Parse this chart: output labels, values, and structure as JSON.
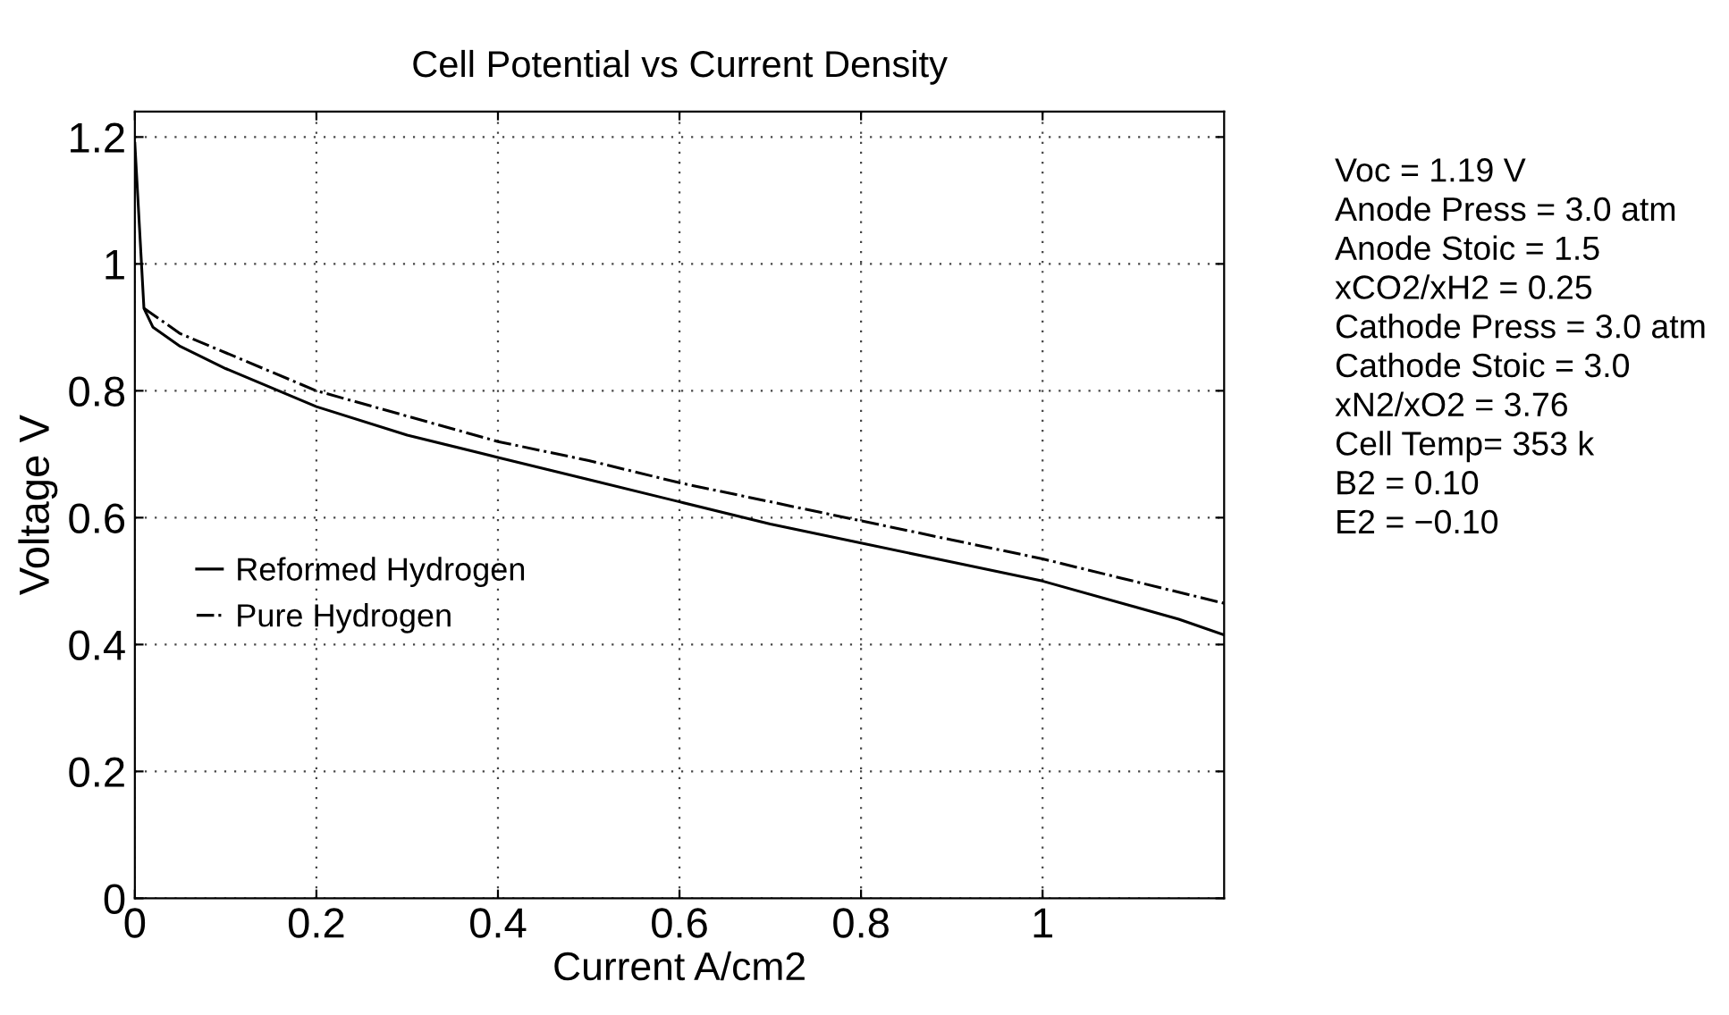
{
  "chart_data": {
    "type": "line",
    "title": "Cell Potential vs Current Density",
    "xlabel": "Current A/cm2",
    "ylabel": "Voltage V",
    "xlim": [
      0,
      1.2
    ],
    "xticks": [
      0,
      0.2,
      0.4,
      0.6,
      0.8,
      1
    ],
    "ylim": [
      0,
      1.24
    ],
    "yticks": [
      0,
      0.2,
      0.4,
      0.6,
      0.8,
      1,
      1.2
    ],
    "grid": true,
    "legend": "bottom left",
    "series": [
      {
        "name": "Reformed Hydrogen",
        "color": "#000000",
        "line_style": "solid",
        "x": [
          0,
          0.01,
          0.02,
          0.05,
          0.1,
          0.2,
          0.3,
          0.4,
          0.5,
          0.6,
          0.7,
          0.8,
          0.9,
          1.0,
          1.1,
          1.15,
          1.2
        ],
        "values": [
          1.19,
          0.93,
          0.9,
          0.87,
          0.835,
          0.775,
          0.73,
          0.695,
          0.66,
          0.625,
          0.59,
          0.56,
          0.53,
          0.5,
          0.46,
          0.44,
          0.415
        ]
      },
      {
        "name": "Pure Hydrogen",
        "color": "#000000",
        "line_style": "dashdot",
        "x": [
          0.01,
          0.05,
          0.1,
          0.2,
          0.3,
          0.4,
          0.5,
          0.6,
          0.7,
          0.8,
          0.9,
          1.0,
          1.1,
          1.2
        ],
        "values": [
          0.93,
          0.89,
          0.86,
          0.8,
          0.76,
          0.72,
          0.69,
          0.655,
          0.625,
          0.595,
          0.565,
          0.535,
          0.5,
          0.465
        ]
      }
    ],
    "annotations": [
      "Voc = 1.19 V",
      "Anode Press = 3.0 atm",
      "Anode Stoic = 1.5",
      "xCO2/xH2 = 0.25",
      "Cathode Press = 3.0 atm",
      "Cathode Stoic = 3.0",
      "xN2/xO2 = 3.76",
      "Cell Temp= 353 k",
      "B2 = 0.10",
      "E2 = −0.10"
    ]
  }
}
